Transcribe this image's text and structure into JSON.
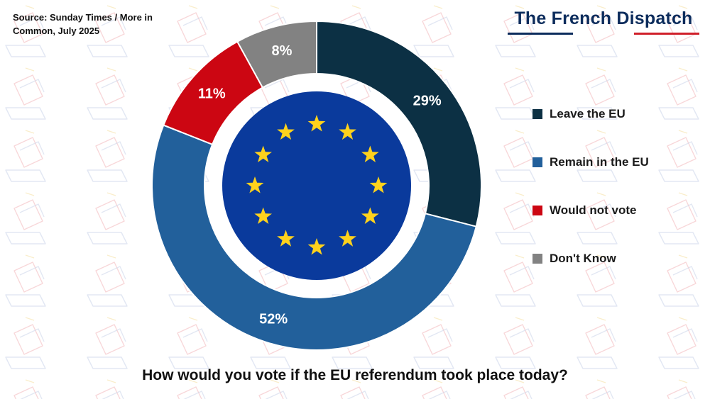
{
  "header": {
    "source_line_1": "Source: Sunday Times / More in",
    "source_line_2": "Common, July 2025",
    "brand": "The French Dispatch"
  },
  "colors": {
    "leave": "#0c3044",
    "remain": "#22609b",
    "would_not_vote": "#cc0612",
    "dont_know": "#828282",
    "eu_blue": "#0a3a9c",
    "eu_star": "#ffd21c"
  },
  "chart_data": {
    "type": "pie",
    "title": "How would you vote if the EU referendum took place today?",
    "style": "donut",
    "legend_position": "right",
    "categories": [
      "Leave the EU",
      "Remain in the EU",
      "Would not vote",
      "Don't Know"
    ],
    "values": [
      29,
      52,
      11,
      8
    ],
    "value_labels": [
      "29%",
      "52%",
      "11%",
      "8%"
    ],
    "unit": "%"
  }
}
